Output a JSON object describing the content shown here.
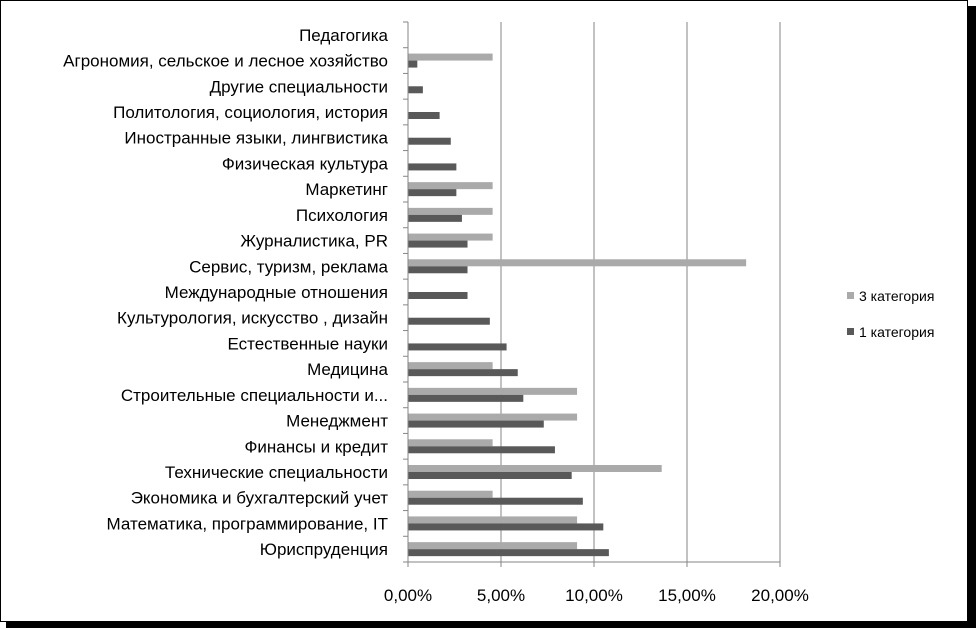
{
  "chart_data": {
    "type": "bar",
    "orientation": "horizontal",
    "categories": [
      "Юриспруденция",
      "Математика, программирование, IT",
      "Экономика и бухгалтерский учет",
      "Технические специальности",
      "Финансы и кредит",
      "Менеджмент",
      "Строительные специальности и...",
      "Медицина",
      "Естественные науки",
      "Культурология, искусство , дизайн",
      "Международные отношения",
      "Сервис, туризм, реклама",
      "Журналистика, PR",
      "Психология",
      "Маркетинг",
      "Физическая культура",
      "Иностранные языки, лингвистика",
      "Политология, социология, история",
      "Другие специальности",
      "Агрономия, сельское и лесное хозяйство",
      "Педагогика"
    ],
    "series": [
      {
        "name": "3 категория",
        "color": "#AAAAAA",
        "values": [
          0.0909,
          0.0909,
          0.0455,
          0.1364,
          0.0455,
          0.0909,
          0.0909,
          0.0455,
          0,
          0,
          0,
          0.1818,
          0.0455,
          0.0455,
          0.0455,
          0,
          0,
          0,
          0,
          0.0455,
          0
        ]
      },
      {
        "name": "1 категория",
        "color": "#595959",
        "values": [
          0.108,
          0.105,
          0.094,
          0.088,
          0.079,
          0.073,
          0.062,
          0.059,
          0.053,
          0.044,
          0.032,
          0.032,
          0.032,
          0.029,
          0.026,
          0.026,
          0.023,
          0.017,
          0.008,
          0.005,
          0
        ]
      }
    ],
    "xlim": [
      0,
      0.2
    ],
    "xticks": [
      0,
      0.05,
      0.1,
      0.15,
      0.2
    ],
    "xtick_labels": [
      "0,00%",
      "5,00%",
      "10,00%",
      "15,00%",
      "20,00%"
    ],
    "grid": "vertical",
    "legend_position": "right",
    "legend_order": [
      "3 категория",
      "1 категория"
    ],
    "title": "",
    "xlabel": "",
    "ylabel": ""
  }
}
